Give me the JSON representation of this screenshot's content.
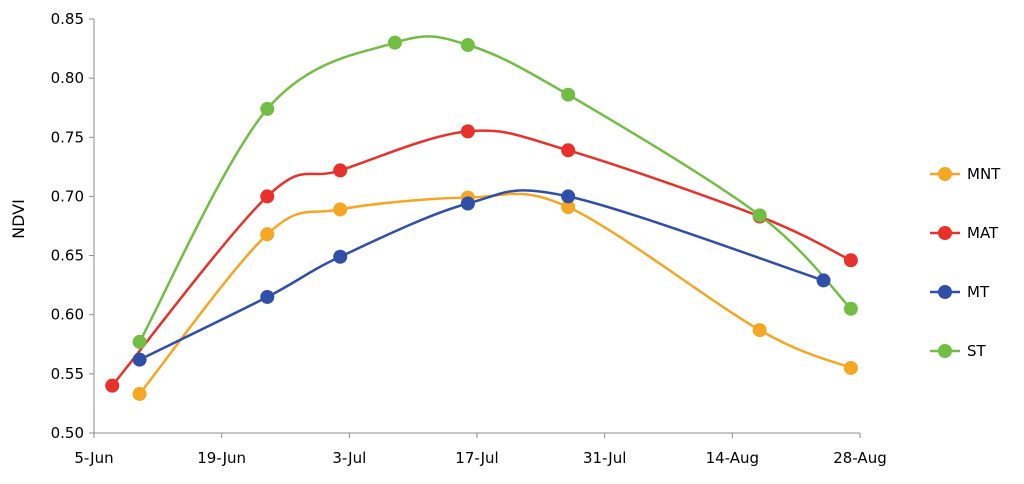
{
  "chart_data": {
    "type": "line",
    "title": "",
    "xlabel": "",
    "ylabel": "NDVI",
    "ylim": [
      0.5,
      0.85
    ],
    "y_ticks": [
      "0.50",
      "0.55",
      "0.60",
      "0.65",
      "0.70",
      "0.75",
      "0.80",
      "0.85"
    ],
    "x_ticks": [
      "5-Jun",
      "19-Jun",
      "3-Jul",
      "17-Jul",
      "31-Jul",
      "14-Aug",
      "28-Aug"
    ],
    "x_range": [
      "5-Jun",
      "28-Aug"
    ],
    "grid": false,
    "smooth": true,
    "legend_position": "right",
    "series": [
      {
        "name": "MNT",
        "color": "#F5A623",
        "points": [
          {
            "x": "10-Jun",
            "y": 0.533
          },
          {
            "x": "24-Jun",
            "y": 0.668
          },
          {
            "x": "2-Jul",
            "y": 0.689
          },
          {
            "x": "16-Jul",
            "y": 0.699
          },
          {
            "x": "27-Jul",
            "y": 0.691
          },
          {
            "x": "17-Aug",
            "y": 0.587
          },
          {
            "x": "27-Aug",
            "y": 0.555
          }
        ]
      },
      {
        "name": "MAT",
        "color": "#E8312A",
        "points": [
          {
            "x": "7-Jun",
            "y": 0.54
          },
          {
            "x": "24-Jun",
            "y": 0.7
          },
          {
            "x": "2-Jul",
            "y": 0.722
          },
          {
            "x": "16-Jul",
            "y": 0.755
          },
          {
            "x": "27-Jul",
            "y": 0.739
          },
          {
            "x": "17-Aug",
            "y": 0.683
          },
          {
            "x": "27-Aug",
            "y": 0.646
          }
        ]
      },
      {
        "name": "MT",
        "color": "#2F4FA8",
        "points": [
          {
            "x": "10-Jun",
            "y": 0.562
          },
          {
            "x": "24-Jun",
            "y": 0.615
          },
          {
            "x": "2-Jul",
            "y": 0.649
          },
          {
            "x": "16-Jul",
            "y": 0.694
          },
          {
            "x": "27-Jul",
            "y": 0.7
          },
          {
            "x": "24-Aug",
            "y": 0.629
          }
        ]
      },
      {
        "name": "ST",
        "color": "#72BE44",
        "points": [
          {
            "x": "10-Jun",
            "y": 0.577
          },
          {
            "x": "24-Jun",
            "y": 0.774
          },
          {
            "x": "8-Jul",
            "y": 0.83
          },
          {
            "x": "16-Jul",
            "y": 0.828
          },
          {
            "x": "27-Jul",
            "y": 0.786
          },
          {
            "x": "17-Aug",
            "y": 0.684
          },
          {
            "x": "27-Aug",
            "y": 0.605
          }
        ]
      }
    ]
  }
}
